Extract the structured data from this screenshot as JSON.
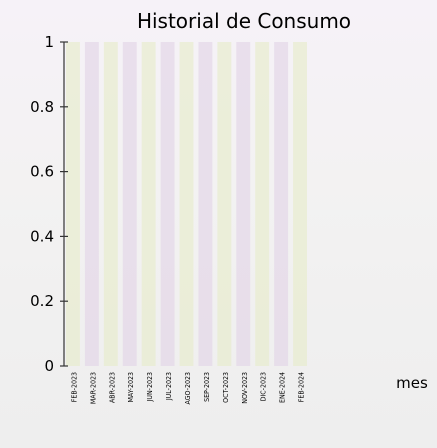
{
  "chart_data": {
    "type": "bar",
    "title": "Historial de Consumo",
    "xlabel": "mes",
    "ylabel": "",
    "ylim": [
      0,
      1
    ],
    "yticks": [
      "0",
      "0.2",
      "0.4",
      "0.6",
      "0.8",
      "1"
    ],
    "categories": [
      "FEB-2023",
      "MAR-2023",
      "ABR-2023",
      "MAY-2023",
      "JUN-2023",
      "JUL-2023",
      "AGO-2023",
      "SEP-2023",
      "OCT-2023",
      "NOV-2023",
      "DIC-2023",
      "ENE-2024",
      "FEB-2024"
    ],
    "values": [
      0,
      0,
      0,
      0,
      0,
      0,
      0,
      0,
      0,
      0,
      0,
      0,
      0
    ],
    "grid": false,
    "legend": "none"
  }
}
